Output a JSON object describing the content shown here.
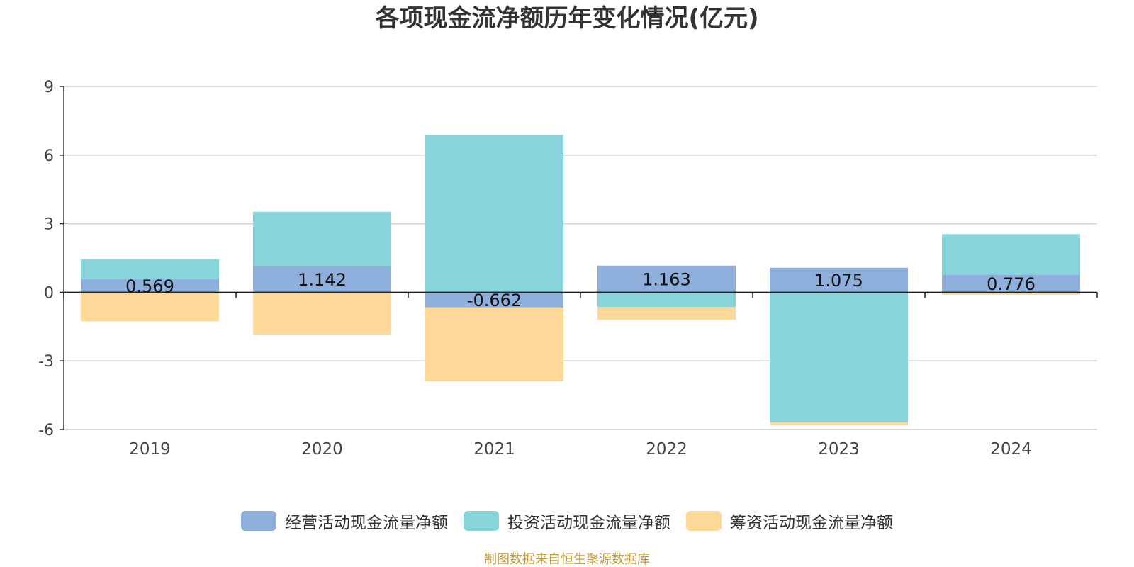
{
  "chart_data": {
    "type": "bar",
    "stacked": true,
    "title": "各项现金流净额历年变化情况(亿元)",
    "categories": [
      "2019",
      "2020",
      "2021",
      "2022",
      "2023",
      "2024"
    ],
    "ylim": [
      -6,
      9
    ],
    "yticks": [
      9,
      6,
      3,
      0,
      -3,
      -6
    ],
    "grid": true,
    "legend_position": "bottom",
    "series": [
      {
        "name": "经营活动现金流量净额",
        "color": "#8eaedc",
        "values": [
          0.569,
          1.142,
          -0.662,
          1.163,
          1.075,
          0.776
        ],
        "labels": [
          "0.569",
          "1.142",
          "-0.662",
          "1.163",
          "1.075",
          "0.776"
        ]
      },
      {
        "name": "投资活动现金流量净额",
        "color": "#87d5da",
        "values": [
          0.88,
          2.38,
          6.88,
          -0.65,
          -5.69,
          1.77
        ]
      },
      {
        "name": "筹资活动现金流量净额",
        "color": "#fed898",
        "values": [
          -1.27,
          -1.85,
          -3.23,
          -0.55,
          -0.12,
          -0.11
        ]
      }
    ]
  },
  "source": "制图数据来自恒生聚源数据库"
}
